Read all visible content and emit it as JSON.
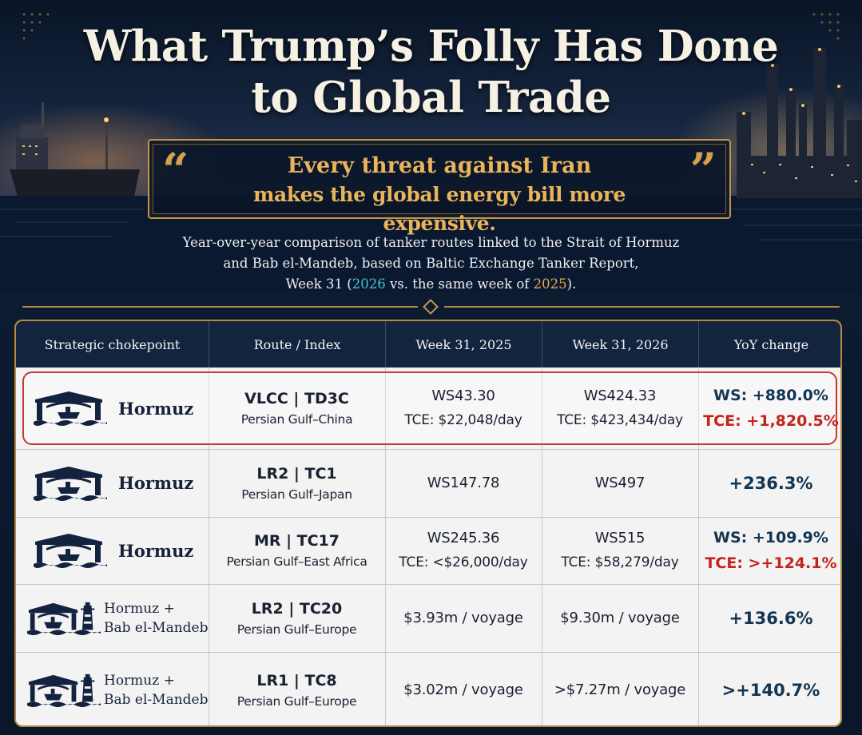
{
  "title": {
    "line1": "What Trump’s Folly Has Done",
    "line2": "to Global Trade"
  },
  "quote": {
    "open_mark": "“",
    "close_mark": "”",
    "line1": "Every threat against Iran",
    "line2": "makes the global energy bill more expensive."
  },
  "subtitle": {
    "line1": "Year-over-year comparison of tanker routes linked to the Strait of Hormuz",
    "line2": "and Bab el-Mandeb, based on Baltic Exchange Tanker Report,",
    "line3_prefix": "Week 31 (",
    "year_2026": "2026",
    "line3_mid": " vs. the same week of ",
    "year_2025": "2025",
    "line3_suffix": ")."
  },
  "colors": {
    "background": "#0c1a2e",
    "gold": "#c39445",
    "year_2026": "#47c4cc",
    "year_2025": "#e8a64a",
    "positive_blue": "#123553",
    "alert_red": "#c4221d"
  },
  "table": {
    "headers": [
      "Strategic chokepoint",
      "Route / Index",
      "Week 31, 2025",
      "Week 31, 2026",
      "YoY change"
    ],
    "rows": [
      {
        "chokepoint": "Hormuz",
        "icon": "gate-tanker-icon",
        "route_code": "VLCC | TD3C",
        "route_desc": "Persian Gulf–China",
        "w2025_a": "WS43.30",
        "w2025_b": "TCE: $22,048/day",
        "w2026_a": "WS424.33",
        "w2026_b": "TCE: $423,434/day",
        "yoy_a": "WS: +880.0%",
        "yoy_b": "TCE: +1,820.5%"
      },
      {
        "chokepoint": "Hormuz",
        "icon": "gate-tanker-icon",
        "route_code": "LR2 | TC1",
        "route_desc": "Persian Gulf–Japan",
        "w2025_a": "WS147.78",
        "w2026_a": "WS497",
        "yoy_a": "+236.3%"
      },
      {
        "chokepoint": "Hormuz",
        "icon": "gate-tanker-icon",
        "route_code": "MR | TC17",
        "route_desc": "Persian Gulf–East Africa",
        "w2025_a": "WS245.36",
        "w2025_b": "TCE: <$26,000/day",
        "w2026_a": "WS515",
        "w2026_b": "TCE: $58,279/day",
        "yoy_a": "WS: +109.9%",
        "yoy_b": "TCE: >+124.1%"
      },
      {
        "chokepoint_l1": "Hormuz +",
        "chokepoint_l2": "Bab el-Mandeb",
        "icon": "gate-lighthouse-icon",
        "route_code": "LR2 | TC20",
        "route_desc": "Persian Gulf–Europe",
        "w2025_a": "$3.93m / voyage",
        "w2026_a": "$9.30m / voyage",
        "yoy_a": "+136.6%"
      },
      {
        "chokepoint_l1": "Hormuz +",
        "chokepoint_l2": "Bab el-Mandeb",
        "icon": "gate-lighthouse-icon",
        "route_code": "LR1 | TC8",
        "route_desc": "Persian Gulf–Europe",
        "w2025_a": "$3.02m / voyage",
        "w2026_a": ">$7.27m / voyage",
        "yoy_a": ">+140.7%"
      }
    ]
  }
}
